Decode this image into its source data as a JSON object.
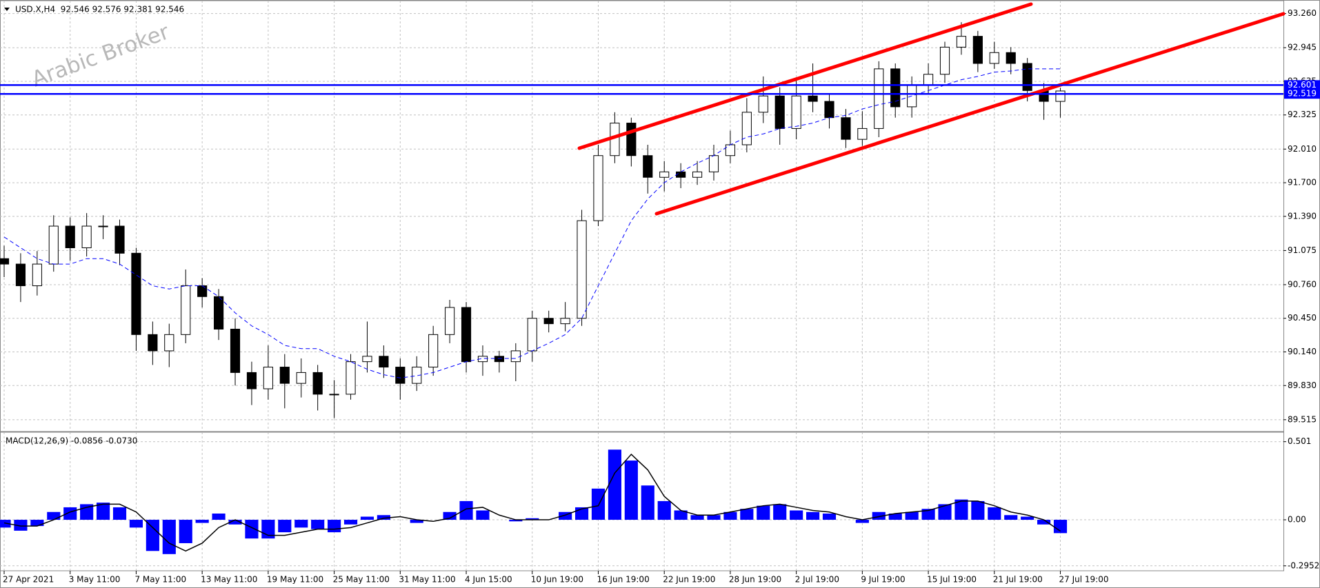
{
  "chart_data": [
    {
      "type": "candlestick",
      "title": "USD.X,H4  92.546 92.576 92.381 92.546",
      "watermark": "Arabic Broker",
      "categories": [
        "27 Apr 2021",
        null,
        null,
        null,
        "3 May 11:00",
        null,
        null,
        null,
        "7 May 11:00",
        null,
        null,
        null,
        "13 May 11:00",
        null,
        null,
        null,
        "19 May 11:00",
        null,
        null,
        null,
        "25 May 11:00",
        null,
        null,
        null,
        "31 May 11:00",
        null,
        null,
        null,
        "4 Jun 15:00",
        null,
        null,
        null,
        "10 Jun 19:00",
        null,
        null,
        null,
        "16 Jun 19:00",
        null,
        null,
        null,
        "22 Jun 19:00",
        null,
        null,
        null,
        "28 Jun 19:00",
        null,
        null,
        null,
        "2 Jul 19:00",
        null,
        null,
        null,
        "9 Jul 19:00",
        null,
        null,
        null,
        "15 Jul 19:00",
        null,
        null,
        null,
        "21 Jul 19:00",
        null,
        null,
        null,
        "27 Jul 19:00"
      ],
      "open": [
        91.0,
        90.95,
        90.75,
        90.95,
        91.3,
        91.1,
        91.3,
        91.3,
        91.05,
        90.3,
        90.15,
        90.3,
        90.75,
        90.65,
        90.35,
        89.95,
        89.8,
        90.0,
        89.85,
        89.95,
        89.75,
        89.75,
        90.05,
        90.1,
        90.0,
        89.85,
        90.0,
        90.3,
        90.55,
        90.05,
        90.1,
        90.05,
        90.15,
        90.45,
        90.4,
        90.45,
        91.35,
        91.95,
        92.25,
        91.95,
        91.75,
        91.8,
        91.75,
        91.8,
        91.95,
        92.05,
        92.35,
        92.5,
        92.2,
        92.5,
        92.45,
        92.3,
        92.1,
        92.2,
        92.75,
        92.4,
        92.6,
        92.7,
        92.95,
        93.05,
        92.8,
        92.9,
        92.8,
        92.55,
        92.45
      ],
      "high": [
        91.12,
        91.05,
        91.07,
        91.4,
        91.38,
        91.42,
        91.4,
        91.36,
        91.1,
        90.42,
        90.4,
        90.9,
        90.82,
        90.72,
        90.45,
        90.05,
        90.2,
        90.12,
        90.08,
        90.02,
        89.88,
        90.12,
        90.42,
        90.2,
        90.08,
        90.1,
        90.38,
        90.62,
        90.6,
        90.2,
        90.15,
        90.22,
        90.52,
        90.52,
        90.6,
        91.45,
        92.05,
        92.35,
        92.3,
        92.05,
        91.9,
        91.88,
        91.9,
        92.05,
        92.18,
        92.48,
        92.68,
        92.58,
        92.66,
        92.8,
        92.52,
        92.38,
        92.36,
        92.82,
        92.8,
        92.68,
        92.8,
        93.0,
        93.18,
        93.1,
        93.0,
        92.95,
        92.85,
        92.62,
        92.576
      ],
      "low": [
        90.83,
        90.6,
        90.66,
        90.88,
        90.98,
        91.02,
        91.18,
        90.94,
        90.15,
        90.02,
        90.0,
        90.22,
        90.55,
        90.25,
        89.83,
        89.65,
        89.7,
        89.62,
        89.72,
        89.6,
        89.53,
        89.7,
        89.95,
        89.9,
        89.7,
        89.78,
        89.92,
        90.22,
        89.95,
        89.92,
        89.95,
        89.87,
        90.05,
        90.32,
        90.33,
        90.38,
        91.3,
        91.88,
        91.85,
        91.6,
        91.62,
        91.65,
        91.68,
        91.72,
        91.88,
        91.98,
        92.25,
        92.05,
        92.1,
        92.35,
        92.2,
        92.02,
        92.04,
        92.12,
        92.3,
        92.3,
        92.52,
        92.62,
        92.88,
        92.72,
        92.75,
        92.7,
        92.45,
        92.28,
        92.3
      ],
      "close": [
        90.95,
        90.75,
        90.95,
        91.3,
        91.1,
        91.3,
        91.3,
        91.05,
        90.3,
        90.15,
        90.3,
        90.75,
        90.65,
        90.35,
        89.95,
        89.8,
        90.0,
        89.85,
        89.95,
        89.75,
        89.75,
        90.05,
        90.1,
        90.0,
        89.85,
        90.0,
        90.3,
        90.55,
        90.05,
        90.1,
        90.05,
        90.15,
        90.45,
        90.4,
        90.45,
        91.35,
        91.95,
        92.25,
        91.95,
        91.75,
        91.8,
        91.75,
        91.8,
        91.95,
        92.05,
        92.35,
        92.5,
        92.2,
        92.5,
        92.45,
        92.3,
        92.1,
        92.2,
        92.75,
        92.4,
        92.6,
        92.7,
        92.95,
        93.05,
        92.8,
        92.9,
        92.8,
        92.55,
        92.45,
        92.546
      ],
      "ma": {
        "color": "#0000ff",
        "values": [
          91.2,
          91.1,
          91.0,
          90.95,
          90.95,
          91.0,
          91.0,
          90.95,
          90.85,
          90.75,
          90.72,
          90.75,
          90.75,
          90.65,
          90.5,
          90.38,
          90.3,
          90.2,
          90.17,
          90.17,
          90.1,
          90.05,
          89.98,
          89.93,
          89.9,
          89.92,
          89.95,
          90.0,
          90.05,
          90.08,
          90.08,
          90.08,
          90.15,
          90.22,
          90.3,
          90.45,
          90.75,
          91.05,
          91.35,
          91.55,
          91.7,
          91.8,
          91.88,
          91.95,
          92.05,
          92.12,
          92.15,
          92.2,
          92.22,
          92.25,
          92.3,
          92.32,
          92.38,
          92.42,
          92.45,
          92.5,
          92.55,
          92.6,
          92.65,
          92.68,
          92.72,
          92.73,
          92.75,
          92.75,
          92.75
        ]
      },
      "levels": {
        "color": "#0000ff",
        "values": [
          92.601,
          92.519
        ]
      },
      "ylim": [
        89.406,
        93.353
      ],
      "yticks": [
        {
          "value": 93.26,
          "label": "93.260"
        },
        92.945,
        92.635,
        92.325,
        {
          "value": 92.01,
          "label": "92.010"
        },
        {
          "value": 91.7,
          "label": "91.700"
        },
        {
          "value": 91.39,
          "label": "91.390"
        },
        91.075,
        {
          "value": 90.76,
          "label": "90.760"
        },
        {
          "value": 90.45,
          "label": "90.450"
        },
        {
          "value": 90.14,
          "label": "90.140"
        },
        {
          "value": 89.83,
          "label": "89.830"
        },
        89.515
      ],
      "grid": true
    },
    {
      "type": "macd",
      "title": "MACD(12,26,9) -0.0856 -0.0730",
      "series": [
        {
          "type": "bar",
          "color": "#0000ff",
          "values": [
            -0.05,
            -0.07,
            -0.04,
            0.05,
            0.08,
            0.1,
            0.11,
            0.08,
            -0.05,
            -0.2,
            -0.22,
            -0.15,
            -0.02,
            0.04,
            -0.03,
            -0.12,
            -0.12,
            -0.08,
            -0.05,
            -0.06,
            -0.08,
            -0.03,
            0.02,
            0.03,
            0.0,
            -0.02,
            0.0,
            0.05,
            0.12,
            0.06,
            0.0,
            -0.01,
            0.01,
            0.0,
            0.05,
            0.08,
            0.2,
            0.45,
            0.38,
            0.22,
            0.12,
            0.06,
            0.03,
            0.03,
            0.05,
            0.07,
            0.09,
            0.1,
            0.06,
            0.05,
            0.04,
            0.0,
            -0.02,
            0.05,
            0.04,
            0.05,
            0.07,
            0.1,
            0.13,
            0.12,
            0.08,
            0.03,
            0.02,
            -0.03,
            -0.0856
          ]
        },
        {
          "type": "line",
          "color": "#000000",
          "values": [
            -0.02,
            -0.04,
            -0.04,
            0.0,
            0.05,
            0.08,
            0.1,
            0.1,
            0.05,
            -0.05,
            -0.15,
            -0.2,
            -0.15,
            -0.05,
            0.0,
            -0.05,
            -0.1,
            -0.1,
            -0.08,
            -0.06,
            -0.06,
            -0.05,
            -0.02,
            0.01,
            0.02,
            0.0,
            -0.01,
            0.01,
            0.07,
            0.08,
            0.03,
            0.0,
            0.0,
            0.0,
            0.03,
            0.07,
            0.09,
            0.3,
            0.42,
            0.32,
            0.15,
            0.06,
            0.03,
            0.03,
            0.05,
            0.07,
            0.09,
            0.1,
            0.08,
            0.06,
            0.05,
            0.02,
            0.0,
            0.02,
            0.04,
            0.05,
            0.06,
            0.09,
            0.12,
            0.12,
            0.09,
            0.05,
            0.03,
            0.0,
            -0.073
          ]
        }
      ],
      "ylim": [
        -0.327,
        0.544
      ],
      "yticks": [
        0.501,
        {
          "value": 0,
          "label": "0.00"
        },
        -0.2952
      ],
      "grid": true
    }
  ]
}
